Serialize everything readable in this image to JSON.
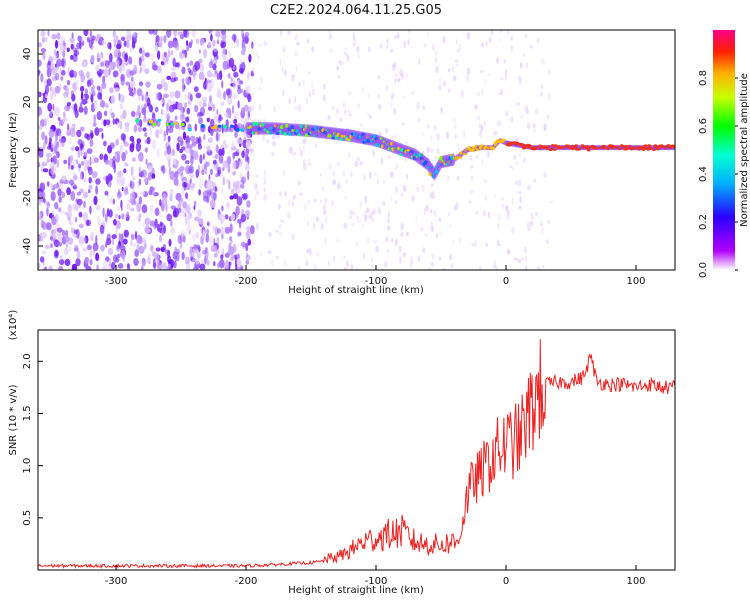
{
  "title": "C2E2.2024.064.11.25.G05",
  "chart_data": [
    {
      "type": "heatmap",
      "xlabel": "Height of straight line (km)",
      "ylabel": "Frequency (Hz)",
      "xlim": [
        -360,
        130
      ],
      "ylim": [
        -50,
        50
      ],
      "xticks": [
        -300,
        -200,
        -100,
        0,
        100
      ],
      "yticks": [
        -40,
        -20,
        0,
        20,
        40
      ],
      "colorbar": {
        "label": "Normalized spectral amplitude",
        "range": [
          0.0,
          1.0
        ],
        "ticks": [
          "0.0",
          "0.2",
          "0.4",
          "0.6",
          "0.8"
        ]
      },
      "ridge": {
        "x": [
          -290,
          -260,
          -240,
          -200,
          -180,
          -150,
          -120,
          -100,
          -80,
          -70,
          -60,
          -55,
          -50,
          -40,
          -30,
          -20,
          -10,
          -5,
          0,
          10,
          20,
          50,
          100,
          130
        ],
        "y": [
          12,
          11,
          9,
          9,
          9,
          8,
          6,
          4,
          0,
          -2,
          -6,
          -10,
          -5,
          -4,
          0,
          1,
          1,
          4,
          3,
          2,
          1,
          1,
          1,
          1
        ]
      }
    },
    {
      "type": "line",
      "xlabel": "Height of straight line (km)",
      "ylabel": "SNR (10 * v/v)",
      "y_multiplier": "(x10⁴)",
      "xlim": [
        -360,
        130
      ],
      "ylim": [
        0,
        2.3
      ],
      "xticks": [
        -300,
        -200,
        -100,
        0,
        100
      ],
      "yticks": [
        0.5,
        1.0,
        1.5,
        2.0
      ],
      "color": "#ee2222",
      "series": [
        {
          "x": [
            -360,
            -300,
            -250,
            -200,
            -180,
            -150,
            -130,
            -120,
            -110,
            -100,
            -90,
            -80,
            -70,
            -60,
            -50,
            -40,
            -35,
            -30,
            -25,
            -20,
            -15,
            -10,
            -5,
            0,
            10,
            20,
            25,
            30,
            40,
            50,
            60,
            65,
            70,
            80,
            90,
            100,
            110,
            120,
            130
          ],
          "y": [
            0.04,
            0.04,
            0.04,
            0.04,
            0.05,
            0.07,
            0.1,
            0.15,
            0.22,
            0.25,
            0.28,
            0.3,
            0.22,
            0.2,
            0.2,
            0.22,
            0.35,
            0.7,
            0.85,
            0.9,
            1.0,
            1.1,
            1.15,
            1.2,
            1.25,
            1.55,
            1.7,
            1.78,
            1.8,
            1.8,
            1.85,
            2.05,
            1.8,
            1.78,
            1.78,
            1.75,
            1.78,
            1.75,
            1.75
          ]
        }
      ]
    }
  ]
}
